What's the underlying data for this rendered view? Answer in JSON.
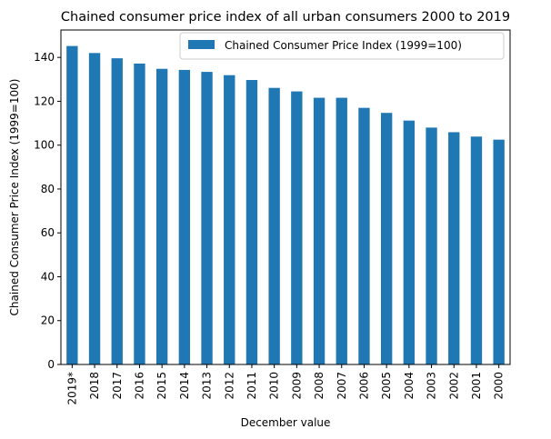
{
  "chart_data": {
    "type": "bar",
    "title": "Chained consumer price index of all urban consumers 2000 to 2019",
    "xlabel": "December value",
    "ylabel": "Chained Consumer Price Index (1999=100)",
    "categories": [
      "2019*",
      "2018",
      "2017",
      "2016",
      "2015",
      "2014",
      "2013",
      "2012",
      "2011",
      "2010",
      "2009",
      "2008",
      "2007",
      "2006",
      "2005",
      "2004",
      "2003",
      "2002",
      "2001",
      "2000"
    ],
    "series": [
      {
        "name": "Chained Consumer Price Index (1999=100)",
        "values": [
          145.2,
          142.0,
          139.6,
          137.2,
          134.8,
          134.3,
          133.4,
          131.9,
          129.7,
          126.1,
          124.5,
          121.6,
          121.6,
          117.0,
          114.7,
          111.2,
          108.0,
          105.9,
          103.9,
          102.5
        ]
      }
    ],
    "ylim": [
      0,
      152.5
    ],
    "yticks": [
      0,
      20,
      40,
      60,
      80,
      100,
      120,
      140
    ],
    "legend_position": "top-right",
    "grid": false,
    "colors": {
      "bar": "#1f77b4"
    }
  }
}
